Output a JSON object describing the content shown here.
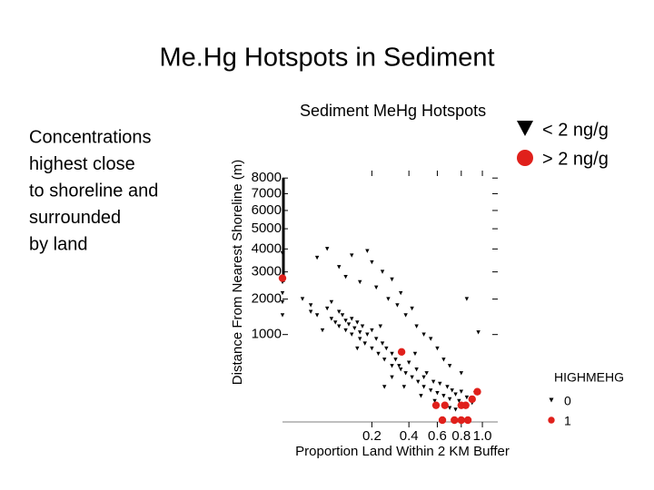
{
  "slide": {
    "title": "Me.Hg Hotspots in Sediment",
    "body_lines": [
      "Concentrations",
      "highest close",
      "to shoreline and",
      "surrounded",
      "by land"
    ],
    "legend": [
      "< 2 ng/g",
      "> 2 ng/g"
    ]
  },
  "chart_data": {
    "type": "scatter",
    "title": "Sediment MeHg Hotspots",
    "x_label": "Proportion Land Within 2 KM Buffer",
    "y_label": "Distance From Nearest Shoreline (m)",
    "legend_title": "HIGHMEHG",
    "xscale": "sqrt",
    "yscale": "sqrt",
    "xlim": [
      0,
      1.16
    ],
    "ylim": [
      0,
      8500
    ],
    "xticks": [
      0.2,
      0.4,
      0.6,
      0.8,
      {
        "value": 1,
        "label": "1.0"
      }
    ],
    "yticks": [
      1000,
      2000,
      3000,
      4000,
      5000,
      6000,
      7000,
      8000
    ],
    "series": [
      {
        "name": "0",
        "color": "#000000",
        "marker": "triangle",
        "x": [
          0,
          0,
          0,
          0.01,
          0.02,
          0.02,
          0.03,
          0.05,
          0.06,
          0.06,
          0.07,
          0.08,
          0.08,
          0.09,
          0.1,
          0.1,
          0.11,
          0.12,
          0.12,
          0.13,
          0.14,
          0.15,
          0.15,
          0.16,
          0.17,
          0.18,
          0.2,
          0.2,
          0.22,
          0.23,
          0.25,
          0.26,
          0.27,
          0.3,
          0.3,
          0.32,
          0.35,
          0.36,
          0.38,
          0.4,
          0.42,
          0.45,
          0.46,
          0.5,
          0.5,
          0.52,
          0.55,
          0.57,
          0.6,
          0.62,
          0.65,
          0.68,
          0.7,
          0.72,
          0.75,
          0.78,
          0.8,
          0.85,
          0.9,
          0.93,
          0,
          0.03,
          0.05,
          0.08,
          0.1,
          0.12,
          0.15,
          0.18,
          0.2,
          0.22,
          0.25,
          0.28,
          0.3,
          0.33,
          0.35,
          0.38,
          0.42,
          0.45,
          0.5,
          0.55,
          0.6,
          0.65,
          0.7,
          0.8,
          0.85,
          0.96,
          0,
          0.04,
          0.14,
          0.24,
          0.34,
          0.44,
          0.26,
          0.37,
          0.3,
          0.48,
          0.58,
          0.7,
          0.75,
          0.66
        ],
        "values": [
          2600,
          2200,
          1900,
          2000,
          1800,
          1600,
          1500,
          1700,
          1900,
          1400,
          1300,
          1600,
          1200,
          1500,
          1350,
          1100,
          1250,
          1400,
          1000,
          1150,
          1300,
          1050,
          900,
          1200,
          800,
          1000,
          1100,
          700,
          900,
          600,
          800,
          500,
          700,
          600,
          400,
          500,
          350,
          600,
          300,
          450,
          250,
          350,
          200,
          250,
          150,
          300,
          120,
          200,
          100,
          180,
          80,
          150,
          60,
          120,
          90,
          50,
          110,
          70,
          40,
          100,
          3800,
          3600,
          4000,
          3200,
          2800,
          3700,
          2600,
          3900,
          3400,
          2400,
          3000,
          2000,
          2700,
          1800,
          2200,
          1500,
          1700,
          1200,
          1000,
          900,
          700,
          500,
          400,
          300,
          2000,
          1050,
          1500,
          1100,
          700,
          1200,
          400,
          600,
          150,
          150,
          250,
          80,
          50,
          20,
          15,
          30
        ]
      },
      {
        "name": "1",
        "color": "#e0201b",
        "marker": "circle",
        "x": [
          0,
          0.355,
          0.59,
          0.66,
          0.64,
          0.74,
          0.8,
          0.86,
          0.8,
          0.84,
          0.9,
          0.95
        ],
        "values": [
          2750,
          635,
          30,
          30,
          0,
          0,
          0,
          0,
          30,
          30,
          60,
          110
        ]
      }
    ]
  }
}
